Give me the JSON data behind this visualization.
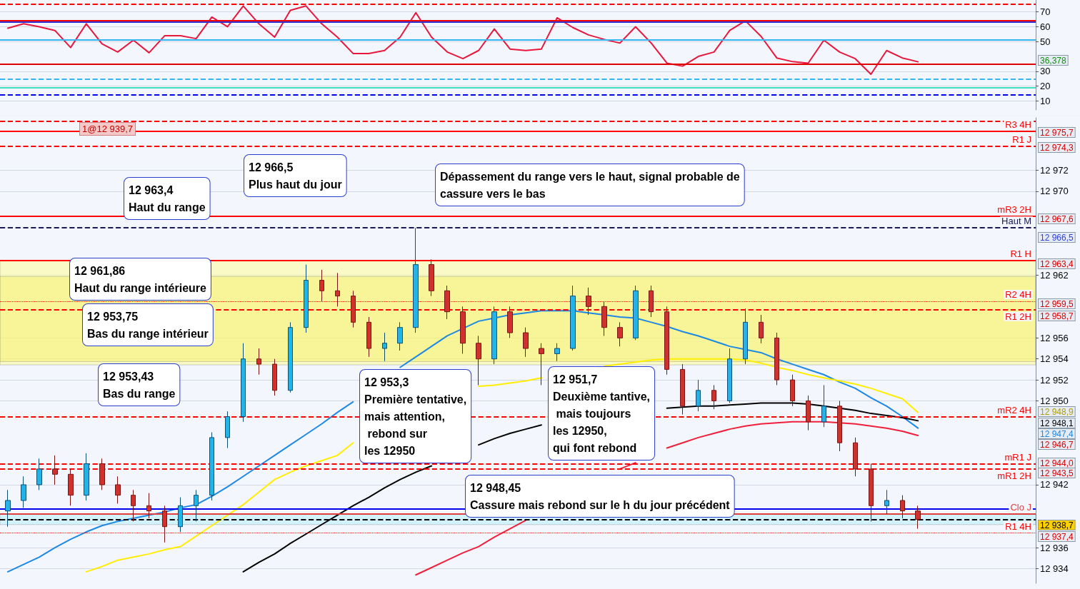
{
  "chart_data": [
    {
      "type": "line",
      "categories": [
        null,
        null,
        null,
        null,
        null,
        null,
        null,
        null,
        null,
        null,
        null,
        null,
        null,
        null,
        null,
        null,
        null,
        null,
        null,
        null,
        null,
        null,
        null,
        null,
        null,
        null,
        null,
        null,
        null,
        null,
        null,
        null,
        null,
        null,
        null,
        null,
        null,
        null,
        null,
        null,
        null,
        null,
        null,
        null,
        null,
        null,
        null,
        null,
        null,
        null,
        null,
        null,
        null,
        null,
        null,
        null,
        null,
        null,
        null,
        null,
        null,
        null,
        null,
        null,
        null,
        null
      ],
      "values": [
        59,
        62,
        60,
        57.5,
        46,
        62,
        48.5,
        43,
        51,
        42.5,
        54,
        54,
        52,
        66.5,
        60,
        74,
        62,
        53,
        71,
        74,
        62,
        53,
        42,
        42,
        44,
        53,
        69.5,
        53,
        43,
        38.5,
        44,
        58.5,
        45,
        44,
        45,
        66,
        59.5,
        54.5,
        51.5,
        49,
        60,
        49,
        35.5,
        33.5,
        40,
        43,
        57.5,
        64,
        53.5,
        39,
        36.5,
        35.5,
        51,
        43,
        38.5,
        28,
        44,
        39,
        36.378,
        null,
        null,
        null,
        null,
        null,
        null,
        null
      ],
      "color": "#e8173c",
      "ylim": [
        4,
        78
      ],
      "yticks": [
        10,
        20,
        30,
        50,
        60,
        70
      ],
      "annotations": [
        "36,378"
      ],
      "grid": "y",
      "ref_lines": [
        {
          "axis": "y",
          "value": 75,
          "color": "#ff0000",
          "line_style": "dashed"
        },
        {
          "axis": "y",
          "value": 64,
          "color": "#ff0000",
          "line_style": "solid"
        },
        {
          "axis": "y",
          "value": 63,
          "color": "#3030d0",
          "line_style": "solid"
        },
        {
          "axis": "y",
          "value": 51,
          "color": "#33b5f0",
          "line_style": "solid"
        },
        {
          "axis": "y",
          "value": 35,
          "color": "#e00000",
          "line_style": "solid"
        },
        {
          "axis": "y",
          "value": 25,
          "color": "#33b5f0",
          "line_style": "dashed"
        },
        {
          "axis": "y",
          "value": 19,
          "color": "#40e0c0",
          "line_style": "solid"
        },
        {
          "axis": "y",
          "value": 14,
          "color": "#0000ee",
          "line_style": "dashed"
        }
      ]
    },
    {
      "type": "candlestick",
      "categories": [
        null,
        null,
        null,
        null,
        null,
        null,
        null,
        null,
        null,
        null,
        null,
        null,
        null,
        null,
        null,
        null,
        null,
        null,
        null,
        null,
        null,
        null,
        null,
        null,
        null,
        null,
        null,
        null,
        null,
        null,
        null,
        null,
        null,
        null,
        null,
        null,
        null,
        null,
        null,
        null,
        null,
        null,
        null,
        null,
        null,
        null,
        null,
        null,
        null,
        null,
        null,
        null,
        null,
        null,
        null,
        null,
        null,
        null,
        null,
        null,
        null,
        null,
        null,
        null,
        null,
        null
      ],
      "ohlc": [
        [
          12939.5,
          12941.5,
          12938.0,
          12940.5
        ],
        [
          12940.5,
          12942.8,
          12939.8,
          12942.0
        ],
        [
          12942.0,
          12944.5,
          12941.5,
          12943.5
        ],
        [
          12943.5,
          12944.8,
          12942.0,
          12943.0
        ],
        [
          12943.0,
          12943.5,
          12940.0,
          12941.0
        ],
        [
          12941.0,
          12945.0,
          12940.5,
          12944.0
        ],
        [
          12944.0,
          12944.5,
          12941.5,
          12942.0
        ],
        [
          12942.0,
          12942.8,
          12940.2,
          12941.0
        ],
        [
          12941.0,
          12941.5,
          12938.5,
          12940.0
        ],
        [
          12940.0,
          12941.2,
          12938.8,
          12939.5
        ],
        [
          12939.5,
          12940.0,
          12936.5,
          12938.0
        ],
        [
          12938.0,
          12940.8,
          12937.5,
          12940.0
        ],
        [
          12940.0,
          12941.5,
          12938.5,
          12941.0
        ],
        [
          12941.0,
          12947.0,
          12940.5,
          12946.5
        ],
        [
          12946.5,
          12949.0,
          12945.5,
          12948.5
        ],
        [
          12948.5,
          12955.5,
          12948.0,
          12954.0
        ],
        [
          12954.0,
          12955.0,
          12952.5,
          12953.5
        ],
        [
          12953.5,
          12954.0,
          12950.5,
          12951.0
        ],
        [
          12951.0,
          12957.5,
          12950.8,
          12957.0
        ],
        [
          12957.0,
          12963.0,
          12956.5,
          12961.5
        ],
        [
          12961.5,
          12962.5,
          12959.5,
          12960.5
        ],
        [
          12960.5,
          12962.2,
          12959.0,
          12960.0
        ],
        [
          12960.0,
          12960.5,
          12957.0,
          12957.5
        ],
        [
          12957.5,
          12958.0,
          12954.2,
          12955.0
        ],
        [
          12955.0,
          12956.5,
          12953.8,
          12955.5
        ],
        [
          12955.5,
          12957.5,
          12954.8,
          12957.0
        ],
        [
          12957.0,
          12966.5,
          12956.5,
          12963.0
        ],
        [
          12963.0,
          12963.5,
          12960.0,
          12960.5
        ],
        [
          12960.5,
          12961.0,
          12957.8,
          12958.5
        ],
        [
          12958.5,
          12959.0,
          12954.5,
          12955.5
        ],
        [
          12955.5,
          12956.2,
          12951.5,
          12954.0
        ],
        [
          12954.0,
          12959.0,
          12953.5,
          12958.5
        ],
        [
          12958.5,
          12959.0,
          12956.0,
          12956.5
        ],
        [
          12956.5,
          12957.0,
          12954.2,
          12955.0
        ],
        [
          12955.0,
          12955.5,
          12951.5,
          12954.5
        ],
        [
          12954.5,
          12955.5,
          12953.8,
          12955.0
        ],
        [
          12955.0,
          12961.0,
          12954.8,
          12960.0
        ],
        [
          12960.0,
          12960.8,
          12958.2,
          12959.0
        ],
        [
          12959.0,
          12959.5,
          12956.2,
          12957.0
        ],
        [
          12957.0,
          12957.5,
          12955.2,
          12956.0
        ],
        [
          12956.0,
          12961.0,
          12955.8,
          12960.5
        ],
        [
          12960.5,
          12961.0,
          12958.0,
          12958.5
        ],
        [
          12958.5,
          12959.0,
          12952.5,
          12953.0
        ],
        [
          12953.0,
          12953.5,
          12948.7,
          12949.5
        ],
        [
          12949.5,
          12952.0,
          12949.0,
          12951.0
        ],
        [
          12951.0,
          12951.5,
          12949.2,
          12950.0
        ],
        [
          12950.0,
          12955.0,
          12949.8,
          12954.0
        ],
        [
          12954.0,
          12958.8,
          12953.5,
          12957.5
        ],
        [
          12957.5,
          12958.2,
          12955.5,
          12956.0
        ],
        [
          12956.0,
          12956.5,
          12951.5,
          12952.0
        ],
        [
          12952.0,
          12952.5,
          12949.5,
          12950.0
        ],
        [
          12950.0,
          12950.5,
          12947.2,
          12948.0
        ],
        [
          12948.0,
          12951.5,
          12947.5,
          12949.5
        ],
        [
          12949.5,
          12950.0,
          12945.2,
          12946.0
        ],
        [
          12946.0,
          12946.5,
          12942.8,
          12943.5
        ],
        [
          12943.5,
          12944.0,
          12938.5,
          12940.0
        ],
        [
          12940.0,
          12941.5,
          12939.2,
          12940.5
        ],
        [
          12940.5,
          12941.0,
          12938.8,
          12939.5
        ],
        [
          12939.5,
          12940.0,
          12937.8,
          12938.7
        ],
        null,
        null,
        null,
        null,
        null,
        null,
        null
      ],
      "series": [
        {
          "type": "line",
          "color": "#1e88e5",
          "values": [
            12933.7,
            12934.4,
            12935.1,
            12936.0,
            12936.8,
            12937.5,
            12938.1,
            12938.5,
            12938.8,
            12939.1,
            12939.4,
            12939.8,
            12940.1,
            12940.9,
            12941.8,
            12942.8,
            12943.8,
            12944.8,
            12945.8,
            12946.8,
            12947.8,
            12948.9,
            12949.9,
            null,
            null,
            12953.2,
            12954.2,
            12955.2,
            12956.2,
            12956.9,
            12957.6,
            12957.9,
            12958.2,
            12958.4,
            12958.6,
            12958.6,
            12958.6,
            12958.4,
            12958.2,
            12958.0,
            12957.9,
            12957.5,
            12957.1,
            12956.6,
            12956.2,
            12955.7,
            12955.2,
            12954.9,
            12954.6,
            12954.0,
            12953.5,
            12953.0,
            12952.5,
            12951.8,
            12951.2,
            12950.3,
            12949.5,
            12948.5,
            12947.4,
            null,
            null,
            null,
            null,
            null,
            null,
            null
          ]
        },
        {
          "type": "line",
          "color": "#ffee00",
          "values": [
            null,
            null,
            null,
            null,
            null,
            12933.7,
            12934.2,
            12934.8,
            12935.1,
            12935.4,
            12935.8,
            12936.1,
            12937.1,
            12938.1,
            12939.1,
            12940.1,
            12941.3,
            12942.5,
            12943.2,
            12943.8,
            12944.3,
            12944.8,
            12946.0,
            null,
            null,
            null,
            null,
            null,
            null,
            null,
            12951.4,
            12951.5,
            12951.7,
            12951.9,
            12952.2,
            null,
            null,
            null,
            12953.3,
            12953.5,
            12953.7,
            12953.9,
            12954.0,
            12954.0,
            12954.0,
            12954.0,
            12954.0,
            12953.9,
            12953.6,
            12953.2,
            12952.9,
            12952.5,
            12952.2,
            12951.9,
            12951.6,
            12951.2,
            12950.7,
            12950.2,
            12948.9,
            null,
            null,
            null,
            null,
            null,
            null,
            null
          ]
        },
        {
          "type": "line",
          "color": "#000000",
          "values": [
            null,
            null,
            null,
            null,
            null,
            null,
            null,
            null,
            null,
            null,
            null,
            null,
            null,
            null,
            null,
            12933.7,
            12934.6,
            12935.4,
            12936.4,
            12937.3,
            12938.2,
            12939.1,
            12940.0,
            12940.8,
            12941.7,
            12942.5,
            12943.2,
            12943.8,
            null,
            null,
            12945.8,
            12946.4,
            12946.9,
            12947.3,
            12947.7,
            null,
            null,
            null,
            null,
            null,
            null,
            null,
            12949.3,
            12949.4,
            12949.5,
            12949.5,
            12949.6,
            12949.7,
            12949.8,
            12949.8,
            12949.8,
            12949.7,
            12949.5,
            12949.3,
            12949.1,
            12948.8,
            12948.6,
            12948.4,
            12948.1,
            null,
            null,
            null,
            null,
            null,
            null,
            null
          ]
        },
        {
          "type": "line",
          "color": "#f0203c",
          "values": [
            null,
            null,
            null,
            null,
            null,
            null,
            null,
            null,
            null,
            null,
            null,
            null,
            null,
            null,
            null,
            null,
            null,
            null,
            null,
            null,
            null,
            null,
            null,
            null,
            null,
            null,
            12933.4,
            12934.1,
            12934.8,
            12935.5,
            12936.1,
            12937.0,
            12937.8,
            12938.6,
            null,
            null,
            null,
            null,
            null,
            12943.5,
            12944.1,
            null,
            12945.5,
            12946.0,
            12946.5,
            12946.9,
            12947.3,
            12947.6,
            12947.8,
            12947.9,
            12948.0,
            12948.0,
            12948.0,
            12947.9,
            12947.8,
            12947.6,
            12947.4,
            12947.1,
            12946.7,
            null,
            null,
            null,
            null,
            null,
            null,
            null
          ]
        }
      ],
      "ylim": [
        12932.6,
        12977
      ],
      "yticks": [
        {
          "value": 12934,
          "label": "12 934"
        },
        {
          "value": 12936,
          "label": "12 936"
        },
        {
          "value": 12942,
          "label": "12 942"
        },
        {
          "value": 12950,
          "label": "12 950"
        },
        {
          "value": 12952,
          "label": "12 952"
        },
        {
          "value": 12954,
          "label": "12 954"
        },
        {
          "value": 12956,
          "label": "12 956"
        },
        {
          "value": 12962,
          "label": "12 962"
        },
        {
          "value": 12970,
          "label": "12 970"
        },
        {
          "value": 12972,
          "label": "12 972"
        }
      ],
      "grid": "y",
      "ref_lines": [
        {
          "axis": "y",
          "value": 12976.7,
          "color": "#ff0000",
          "line_style": "dashed"
        },
        {
          "axis": "y",
          "value": 12975.7,
          "label": "R3 4H",
          "color": "#ff0000",
          "line_style": "solid"
        },
        {
          "axis": "y",
          "value": 12974.3,
          "label": "R1 J",
          "color": "#ff0000",
          "line_style": "dashed"
        },
        {
          "axis": "y",
          "value": 12967.6,
          "label": "mR3 2H",
          "color": "#ff0000",
          "line_style": "solid"
        },
        {
          "axis": "y",
          "value": 12966.5,
          "label": "Haut M",
          "color": "#1a1a5a",
          "line_style": "dashed"
        },
        {
          "axis": "y",
          "value": 12963.4,
          "label": "R1 H",
          "color": "#ff0000",
          "line_style": "solid"
        },
        {
          "axis": "y",
          "value": 12959.5,
          "label": "R2 4H",
          "color": "#ff0000",
          "line_style": "dotted"
        },
        {
          "axis": "y",
          "value": 12958.7,
          "label": "R1 2H",
          "color": "#ff0000",
          "line_style": "dashed"
        },
        {
          "axis": "y",
          "value": 12948.5,
          "label": "mR2 4H",
          "color": "#ff0000",
          "line_style": "dashed"
        },
        {
          "axis": "y",
          "value": 12944.0,
          "label": "mR1 J",
          "color": "#ff0000",
          "line_style": "dashed"
        },
        {
          "axis": "y",
          "value": 12943.5,
          "label": "mR1 2H",
          "color": "#ff0000",
          "line_style": "dashed"
        },
        {
          "axis": "y",
          "value": 12939.7,
          "color": "#0000ee",
          "line_style": "solid"
        },
        {
          "axis": "y",
          "value": 12939.2,
          "label": "Clo J",
          "color": "#e04040",
          "line_style": "solid"
        },
        {
          "axis": "y",
          "value": 12938.7,
          "color": "#000000",
          "line_style": "dashed"
        },
        {
          "axis": "y",
          "value": 12937.4,
          "label": "R1 4H",
          "color": "#ff0000",
          "line_style": "dotted"
        }
      ],
      "bands": [
        {
          "axis": "y",
          "from": 12953.43,
          "to": 12963.4,
          "color": "#ffff80"
        },
        {
          "axis": "y",
          "from": 12953.75,
          "to": 12961.86,
          "color": "#f5f060"
        },
        {
          "axis": "y",
          "from": 12938.2,
          "to": 12939.2,
          "color": "#a8f0ff"
        }
      ],
      "annotations": [
        "12 966,5\nPlus haut du jour",
        "12 963,4\nHaut du range",
        "Dépassement du range vers le haut, signal probable de\ncassure vers le bas",
        "12 961,86\nHaut du range intérieure",
        "12 953,75\nBas du range intérieur",
        "12 953,43\nBas du range",
        "12 953,3\nPremière tentative,\nmais attention,\n rebond sur\nles 12950",
        "12 951,7\nDeuxième tantive,\n mais toujours\nles 12950,\nqui font rebond",
        "12 948,45\nCassure mais rebond sur le h du jour précédent",
        "1@12 939,7",
        "12 975,7",
        "12 974,3",
        "12 967,6",
        "12 966,5",
        "12 963,4",
        "12 959,5",
        "12 958,7",
        "12 948,9",
        "12 948,1",
        "12 947,4",
        "12 946,7",
        "12 944,0",
        "12 943,5",
        "12 938,7",
        "12 937,4"
      ]
    }
  ]
}
